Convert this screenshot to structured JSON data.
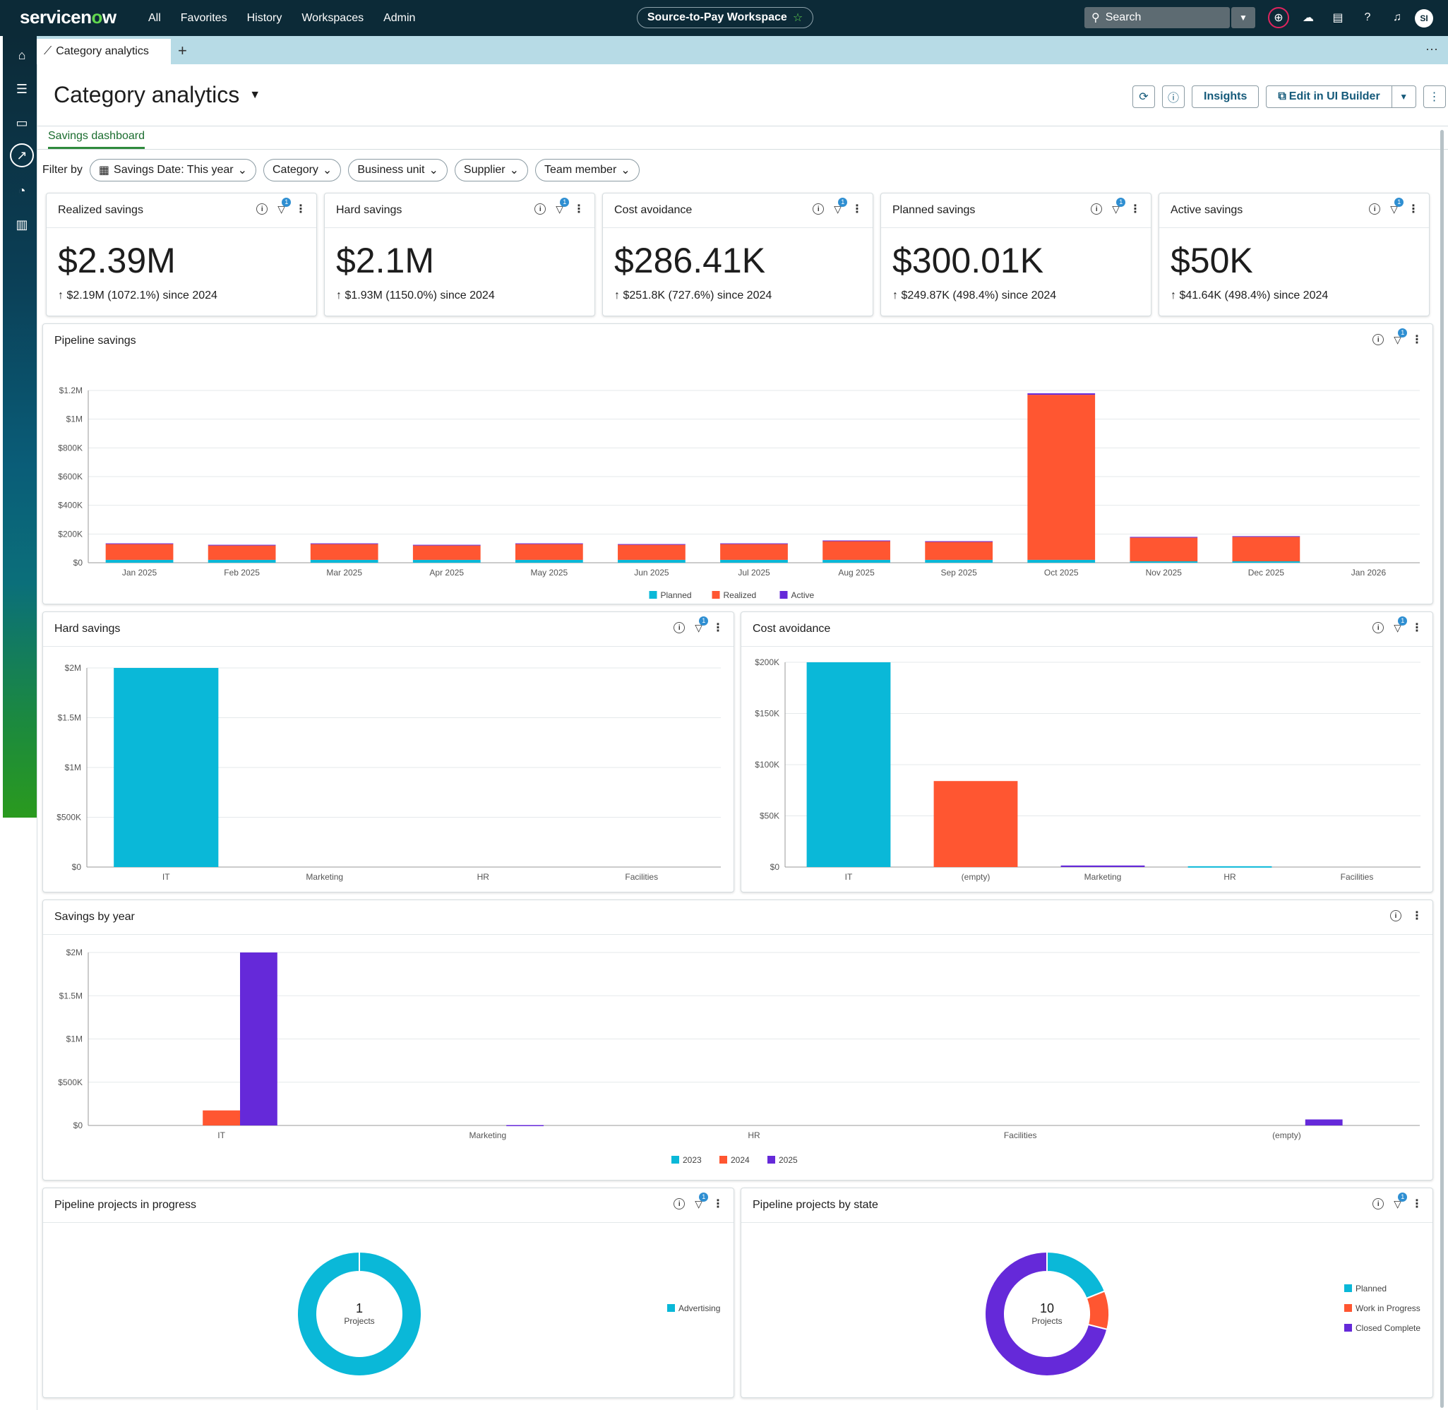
{
  "topnav": {
    "logo_pre": "servicen",
    "logo_o": "o",
    "logo_post": "w",
    "links": [
      "All",
      "Favorites",
      "History",
      "Workspaces",
      "Admin"
    ],
    "workspace": "Source-to-Pay Workspace",
    "search_label": "Search",
    "avatar": "SI"
  },
  "tab": {
    "label": "Category analytics"
  },
  "page": {
    "title": "Category analytics",
    "insights_label": "Insights",
    "edit_label": "Edit in UI Builder",
    "subtab": "Savings dashboard"
  },
  "filters": {
    "label": "Filter by",
    "chips": [
      "Savings Date: This year",
      "Category",
      "Business unit",
      "Supplier",
      "Team member"
    ]
  },
  "kpis": [
    {
      "title": "Realized savings",
      "value": "$2.39M",
      "delta": "↑ $2.19M (1072.1%) since 2024"
    },
    {
      "title": "Hard savings",
      "value": "$2.1M",
      "delta": "↑ $1.93M (1150.0%) since 2024"
    },
    {
      "title": "Cost avoidance",
      "value": "$286.41K",
      "delta": "↑ $251.8K (727.6%) since 2024"
    },
    {
      "title": "Planned savings",
      "value": "$300.01K",
      "delta": "↑ $249.87K (498.4%) since 2024"
    },
    {
      "title": "Active savings",
      "value": "$50K",
      "delta": "↑ $41.64K (498.4%) since 2024"
    }
  ],
  "badge_count": "1",
  "colors": {
    "planned": "#0ab8d8",
    "realized": "#ff5631",
    "active": "#6529d9",
    "grid": "#e5e9eb",
    "axis": "#999"
  },
  "chart_data": [
    {
      "id": "pipeline",
      "type": "bar",
      "stacked": true,
      "title": "Pipeline savings",
      "categories": [
        "Jan 2025",
        "Feb 2025",
        "Mar 2025",
        "Apr 2025",
        "May 2025",
        "Jun 2025",
        "Jul 2025",
        "Aug 2025",
        "Sep 2025",
        "Oct 2025",
        "Nov 2025",
        "Dec 2025",
        "Jan 2026"
      ],
      "ylim": [
        0,
        1200000
      ],
      "yticks": [
        "$0",
        "$200K",
        "$400K",
        "$600K",
        "$800K",
        "$1M",
        "$1.2M"
      ],
      "series": [
        {
          "name": "Planned",
          "values": [
            20000,
            20000,
            20000,
            20000,
            20000,
            20000,
            20000,
            20000,
            20000,
            20000,
            10000,
            10000,
            0
          ]
        },
        {
          "name": "Realized",
          "values": [
            110000,
            100000,
            110000,
            100000,
            110000,
            105000,
            110000,
            130000,
            125000,
            1150000,
            165000,
            170000,
            0
          ]
        },
        {
          "name": "Active",
          "values": [
            5000,
            5000,
            5000,
            5000,
            5000,
            5000,
            5000,
            5000,
            5000,
            10000,
            5000,
            5000,
            0
          ]
        }
      ]
    },
    {
      "id": "hard",
      "type": "bar",
      "title": "Hard savings",
      "categories": [
        "IT",
        "Marketing",
        "HR",
        "Facilities"
      ],
      "ylim": [
        0,
        2100000
      ],
      "yticks": [
        "$0",
        "$500K",
        "$1M",
        "$1.5M",
        "$2M"
      ],
      "values": [
        2100000,
        0,
        0,
        0
      ]
    },
    {
      "id": "cost",
      "type": "bar",
      "title": "Cost avoidance",
      "categories": [
        "IT",
        "(empty)",
        "Marketing",
        "HR",
        "Facilities"
      ],
      "ylim": [
        0,
        200000
      ],
      "yticks": [
        "$0",
        "$50K",
        "$100K",
        "$150K",
        "$200K"
      ],
      "values": [
        200000,
        84000,
        1500,
        800,
        0
      ]
    },
    {
      "id": "byyear",
      "type": "bar",
      "title": "Savings by year",
      "categories": [
        "IT",
        "Marketing",
        "HR",
        "Facilities",
        "(empty)"
      ],
      "ylim": [
        0,
        2300000
      ],
      "yticks": [
        "$0",
        "$500K",
        "$1M",
        "$1.5M",
        "$2M"
      ],
      "series": [
        {
          "name": "2023",
          "values": [
            0,
            0,
            0,
            0,
            0
          ]
        },
        {
          "name": "2024",
          "values": [
            200000,
            0,
            0,
            0,
            0
          ]
        },
        {
          "name": "2025",
          "values": [
            2300000,
            5000,
            0,
            0,
            80000
          ]
        }
      ]
    },
    {
      "id": "inprogress",
      "type": "pie",
      "donut": true,
      "title": "Pipeline projects in progress",
      "center_value": "1",
      "center_label": "Projects",
      "slices": [
        {
          "name": "Advertising",
          "value": 1
        }
      ]
    },
    {
      "id": "bystate",
      "type": "pie",
      "donut": true,
      "title": "Pipeline projects by state",
      "center_value": "10",
      "center_label": "Projects",
      "slices": [
        {
          "name": "Planned",
          "value": 1.9
        },
        {
          "name": "Work in Progress",
          "value": 1.0
        },
        {
          "name": "Closed Complete",
          "value": 7.1
        }
      ]
    }
  ]
}
